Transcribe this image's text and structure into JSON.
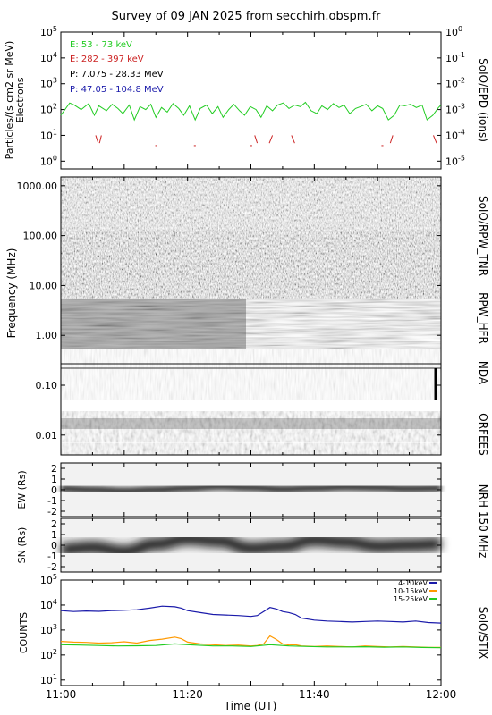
{
  "title": "Survey of 09 JAN 2025 from secchirh.obspm.fr",
  "chart_data": [
    {
      "type": "line",
      "panel": "particles",
      "ylabel": "Particles/(s cm2 sr MeV)",
      "ylabel2": "Electrons",
      "right_label": "SoIO/EPD (ions)",
      "yscale": "log",
      "ylim": [
        0.5,
        100000
      ],
      "ytick_labels": [
        "10^5",
        "10^4",
        "10^3",
        "10^2",
        "10^1",
        "10^0"
      ],
      "ytick_values": [
        100000,
        10000,
        1000,
        100,
        10,
        1
      ],
      "y2scale": "log",
      "y2lim": [
        5e-06,
        1
      ],
      "y2tick_labels": [
        "10^0",
        "10^-1",
        "10^-2",
        "10^-3",
        "10^-4",
        "10^-5"
      ],
      "y2tick_values": [
        1,
        0.1,
        0.01,
        0.001,
        0.0001,
        1e-05
      ],
      "legend": [
        {
          "label": "E: 53 - 73 keV",
          "color": "#22cc22"
        },
        {
          "label": "E: 282 - 397 keV",
          "color": "#cc2222"
        },
        {
          "label": "P: 7.075 - 28.33 MeV",
          "color": "#000000"
        },
        {
          "label": "P: 47.05 - 104.8 MeV",
          "color": "#1a1aaa"
        }
      ],
      "legend_position": "top-left",
      "series": [
        {
          "name": "E: 53 - 73 keV",
          "color": "#22cc22",
          "x": [
            0,
            1.4,
            2.1,
            3.2,
            4.4,
            5.3,
            6.0,
            7.2,
            8.1,
            9.0,
            9.8,
            10.8,
            11.6,
            12.5,
            13.4,
            14.2,
            15.0,
            15.9,
            16.8,
            17.7,
            18.6,
            19.4,
            20.3,
            21.2,
            22.0,
            23.0,
            23.9,
            24.8,
            25.6,
            26.5,
            27.3,
            28.2,
            29.0,
            29.9,
            30.8,
            31.6,
            32.5,
            33.4,
            34.2,
            35.1,
            36.0,
            36.9,
            37.8,
            38.6,
            39.5,
            40.4,
            41.2,
            42.1,
            43.0,
            43.9,
            44.7,
            45.6,
            46.5,
            47.3,
            48.2,
            49.1,
            50.0,
            50.8,
            51.7,
            52.6,
            53.5,
            54.3,
            55.2,
            56.1,
            57.0,
            57.8,
            58.7,
            59.6,
            60
          ],
          "y": [
            60,
            180,
            150,
            100,
            170,
            60,
            140,
            90,
            160,
            110,
            70,
            150,
            40,
            130,
            100,
            160,
            50,
            120,
            80,
            170,
            110,
            60,
            140,
            40,
            110,
            150,
            70,
            130,
            50,
            100,
            160,
            90,
            60,
            130,
            100,
            50,
            140,
            90,
            150,
            180,
            110,
            150,
            130,
            190,
            90,
            70,
            140,
            100,
            170,
            120,
            150,
            70,
            110,
            130,
            160,
            90,
            140,
            110,
            40,
            60,
            150,
            140,
            160,
            120,
            150,
            40,
            60,
            120,
            150
          ]
        },
        {
          "name": "E: 282 - 397 keV",
          "color": "#cc2222",
          "style": "sparse",
          "segments": [
            [
              [
                5.5,
                10
              ],
              [
                5.9,
                5
              ]
            ],
            [
              [
                6.1,
                5
              ],
              [
                6.4,
                10
              ]
            ],
            [
              [
                14.9,
                4
              ],
              [
                15.2,
                4
              ]
            ],
            [
              [
                21.0,
                4
              ],
              [
                21.3,
                4
              ]
            ],
            [
              [
                29.9,
                4
              ],
              [
                30.2,
                4
              ]
            ],
            [
              [
                30.6,
                10
              ],
              [
                31.0,
                5
              ]
            ],
            [
              [
                32.9,
                5
              ],
              [
                33.4,
                10
              ]
            ],
            [
              [
                36.4,
                10
              ],
              [
                36.9,
                5
              ]
            ],
            [
              [
                50.6,
                4
              ],
              [
                50.9,
                4
              ]
            ],
            [
              [
                52.0,
                5
              ],
              [
                52.4,
                10
              ]
            ],
            [
              [
                58.8,
                10
              ],
              [
                59.3,
                5
              ]
            ]
          ]
        }
      ]
    },
    {
      "type": "heatmap",
      "panel": "radio",
      "ylabel": "Frequency (MHz)",
      "yscale": "log",
      "ylim": [
        0.004,
        1500
      ],
      "ytick_labels": [
        "0.01",
        "0.10",
        "1.00",
        "10.00",
        "100.00",
        "1000.00"
      ],
      "ytick_values": [
        0.01,
        0.1,
        1,
        10,
        100,
        1000
      ],
      "instruments": [
        "SoIO/RPW_TNR",
        "RPW_HFR",
        "NDA",
        "ORFEES"
      ]
    },
    {
      "type": "heatmap",
      "panel": "nrh_ew",
      "ylabel": "EW (Rs)",
      "ylim": [
        -2.5,
        2.5
      ],
      "ytick_labels": [
        "2",
        "1",
        "0",
        "-1",
        "-2"
      ],
      "ytick_values": [
        2,
        1,
        0,
        -1,
        -2
      ],
      "right_label": "NRH 150 MHz",
      "ridge_x": [
        0,
        5,
        10,
        15,
        20,
        25,
        30,
        35,
        40,
        45,
        50,
        55,
        60
      ],
      "ridge_y": [
        0.1,
        0.0,
        -0.1,
        0.0,
        0.15,
        0.3,
        0.2,
        0.05,
        0.15,
        0.25,
        0.2,
        0.1,
        0.15
      ]
    },
    {
      "type": "heatmap",
      "panel": "nrh_sn",
      "ylabel": "SN (Rs)",
      "ylim": [
        -2.5,
        2.5
      ],
      "ytick_labels": [
        "2",
        "1",
        "0",
        "-1",
        "-2"
      ],
      "ytick_values": [
        2,
        1,
        0,
        -1,
        -2
      ],
      "ridge_x": [
        0,
        5,
        10,
        15,
        20,
        25,
        30,
        35,
        40,
        45,
        50,
        55,
        60
      ],
      "ridge_y": [
        -0.4,
        -0.2,
        -0.6,
        0.1,
        0.6,
        0.4,
        -0.3,
        -0.1,
        0.5,
        0.3,
        -0.1,
        0.0,
        0.1
      ]
    },
    {
      "type": "line",
      "panel": "stix",
      "ylabel": "COUNTS",
      "right_label": "SolO/STIX",
      "yscale": "log",
      "ylim": [
        6,
        100000
      ],
      "ytick_labels": [
        "10^5",
        "10^4",
        "10^3",
        "10^2",
        "10^1"
      ],
      "ytick_values": [
        100000,
        10000,
        1000,
        100,
        10
      ],
      "xlabel": "Time (UT)",
      "x_tick_labels": [
        "11:00",
        "11:20",
        "11:40",
        "12:00"
      ],
      "x_tick_values": [
        0,
        20,
        40,
        60
      ],
      "legend_position": "top-right",
      "series": [
        {
          "name": "4-10keV",
          "color": "#1a1aaa",
          "x": [
            0,
            2,
            4,
            6,
            8,
            10,
            12,
            14,
            16,
            18,
            19,
            20,
            22,
            24,
            26,
            28,
            30,
            31,
            32,
            33,
            34,
            35,
            36,
            37,
            38,
            40,
            42,
            44,
            46,
            48,
            50,
            52,
            54,
            56,
            58,
            60
          ],
          "y": [
            6000,
            5500,
            5800,
            5600,
            6000,
            6200,
            6500,
            7500,
            9000,
            8500,
            7500,
            6000,
            5000,
            4200,
            4000,
            3800,
            3500,
            3800,
            5500,
            8000,
            7000,
            5500,
            5000,
            4200,
            3000,
            2500,
            2300,
            2200,
            2100,
            2200,
            2300,
            2200,
            2100,
            2300,
            2000,
            1900
          ]
        },
        {
          "name": "10-15keV",
          "color": "#ff9900",
          "x": [
            0,
            2,
            4,
            6,
            8,
            10,
            12,
            14,
            16,
            18,
            19,
            20,
            22,
            24,
            26,
            28,
            30,
            31,
            32,
            33,
            34,
            35,
            36,
            37,
            38,
            40,
            42,
            44,
            46,
            48,
            50,
            52,
            54,
            56,
            58,
            60
          ],
          "y": [
            350,
            330,
            320,
            300,
            310,
            340,
            300,
            380,
            430,
            520,
            450,
            330,
            280,
            260,
            240,
            250,
            230,
            240,
            280,
            580,
            420,
            280,
            250,
            260,
            230,
            220,
            230,
            220,
            210,
            230,
            220,
            210,
            220,
            210,
            200,
            200
          ]
        },
        {
          "name": "15-25keV",
          "color": "#22cc22",
          "x": [
            0,
            3,
            6,
            9,
            12,
            15,
            18,
            20,
            24,
            27,
            30,
            33,
            36,
            39,
            42,
            45,
            48,
            51,
            54,
            57,
            60
          ],
          "y": [
            260,
            250,
            240,
            230,
            235,
            240,
            280,
            260,
            230,
            230,
            220,
            260,
            230,
            220,
            210,
            210,
            215,
            205,
            210,
            200,
            195
          ]
        }
      ]
    }
  ]
}
